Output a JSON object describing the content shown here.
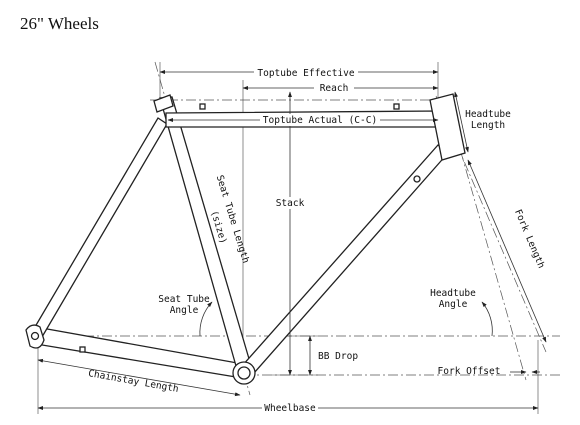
{
  "title": "26\" Wheels",
  "labels": {
    "toptube_effective": "Toptube Effective",
    "reach": "Reach",
    "toptube_actual": "Toptube Actual (C-C)",
    "headtube_length_line1": "Headtube",
    "headtube_length_line2": "Length",
    "stack": "Stack",
    "seat_tube_length_line1": "Seat Tube Length",
    "seat_tube_length_line2": "(size)",
    "fork_length": "Fork Length",
    "seat_tube_angle_line1": "Seat Tube",
    "seat_tube_angle_line2": "Angle",
    "headtube_angle_line1": "Headtube",
    "headtube_angle_line2": "Angle",
    "bb_drop": "BB Drop",
    "fork_offset": "Fork Offset",
    "chainstay_length": "Chainstay Length",
    "wheelbase": "Wheelbase"
  }
}
